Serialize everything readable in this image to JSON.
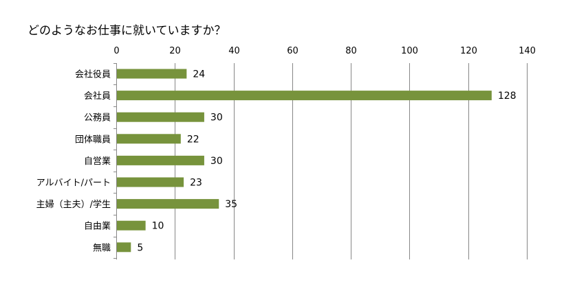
{
  "chart_data": {
    "type": "bar",
    "orientation": "horizontal",
    "title": "どのようなお仕事に就いていますか？",
    "categories": [
      "会社役員",
      "会社員",
      "公務員",
      "団体職員",
      "自営業",
      "アルバイト/パート",
      "主婦（主夫）/学生",
      "自由業",
      "無職"
    ],
    "values": [
      24,
      128,
      30,
      22,
      30,
      23,
      35,
      10,
      5
    ],
    "xlim": [
      0,
      140
    ],
    "x_ticks": [
      0,
      20,
      40,
      60,
      80,
      100,
      120,
      140
    ],
    "x_axis_position": "top",
    "grid": true,
    "data_labels": true,
    "legend": false,
    "bar_color": "#77933C",
    "grid_color": "#868686"
  }
}
